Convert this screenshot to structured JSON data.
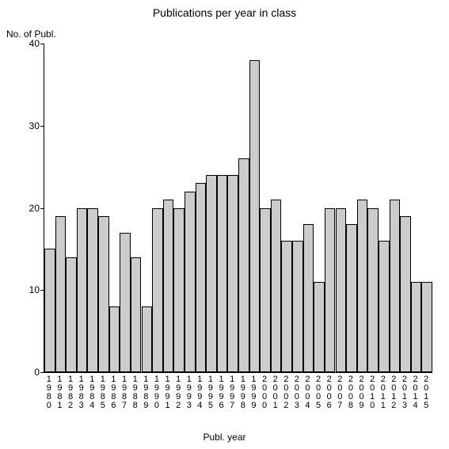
{
  "chart": {
    "type": "bar",
    "title": "Publications per year in class",
    "y_axis_title": "No. of Publ.",
    "x_axis_title": "Publ. year",
    "title_fontsize": 14,
    "axis_label_fontsize": 12,
    "tick_fontsize": 12,
    "x_tick_fontsize": 11,
    "background_color": "#ffffff",
    "bar_fill_color": "#cccccc",
    "bar_border_color": "#000000",
    "axis_color": "#000000",
    "ylim": [
      0,
      40
    ],
    "ytick_step": 10,
    "y_ticks": [
      0,
      10,
      20,
      30,
      40
    ],
    "bar_width": 1.0,
    "categories": [
      "1980",
      "1981",
      "1982",
      "1983",
      "1984",
      "1985",
      "1986",
      "1987",
      "1988",
      "1989",
      "1990",
      "1991",
      "1992",
      "1993",
      "1994",
      "1995",
      "1996",
      "1997",
      "1998",
      "1999",
      "2000",
      "2001",
      "2002",
      "2003",
      "2004",
      "2005",
      "2006",
      "2007",
      "2008",
      "2009",
      "2010",
      "2011",
      "2012",
      "2013",
      "2014",
      "2015"
    ],
    "values": [
      15,
      19,
      14,
      20,
      20,
      19,
      8,
      17,
      14,
      8,
      20,
      21,
      20,
      22,
      23,
      24,
      24,
      24,
      26,
      38,
      20,
      21,
      16,
      16,
      18,
      11,
      20,
      20,
      18,
      21,
      20,
      16,
      21,
      19,
      11,
      11
    ]
  }
}
